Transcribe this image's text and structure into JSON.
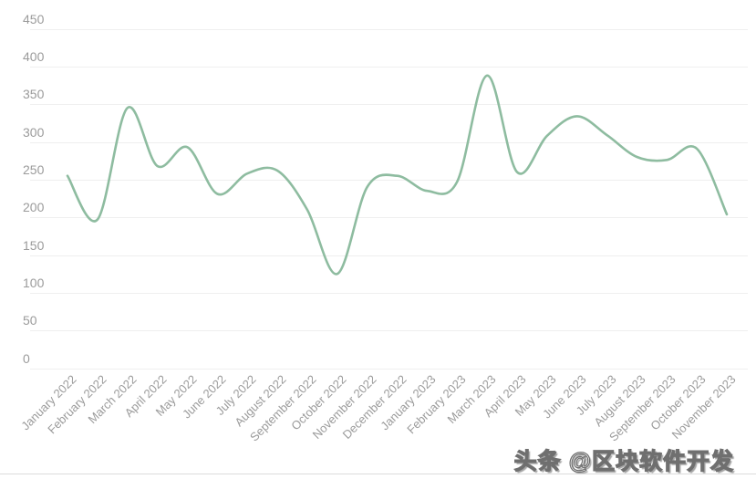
{
  "chart_data": {
    "type": "line",
    "smooth": true,
    "title": "",
    "xlabel": "",
    "ylabel": "",
    "legend_position": "none",
    "grid": "horizontal-only",
    "ylim": [
      0,
      450
    ],
    "y_ticks": [
      450,
      400,
      350,
      300,
      250,
      200,
      150,
      100,
      50,
      0
    ],
    "categories": [
      "January 2022",
      "February 2022",
      "March 2022",
      "April 2022",
      "May 2022",
      "June 2022",
      "July 2022",
      "August 2022",
      "September 2022",
      "October 2022",
      "November 2022",
      "December 2022",
      "January 2023",
      "February 2023",
      "March 2023",
      "April 2023",
      "May 2023",
      "June 2023",
      "July 2023",
      "August 2023",
      "September 2023",
      "October 2023",
      "November 2023"
    ],
    "values": [
      255,
      197,
      345,
      268,
      293,
      231,
      258,
      262,
      210,
      125,
      240,
      255,
      235,
      247,
      388,
      260,
      308,
      334,
      309,
      280,
      276,
      291,
      204
    ],
    "colors": {
      "line": "#8ebca0",
      "gridline": "#efefef",
      "tick_label": "#9b9b9b"
    }
  },
  "watermark": {
    "text": "头条 @区块软件开发"
  }
}
